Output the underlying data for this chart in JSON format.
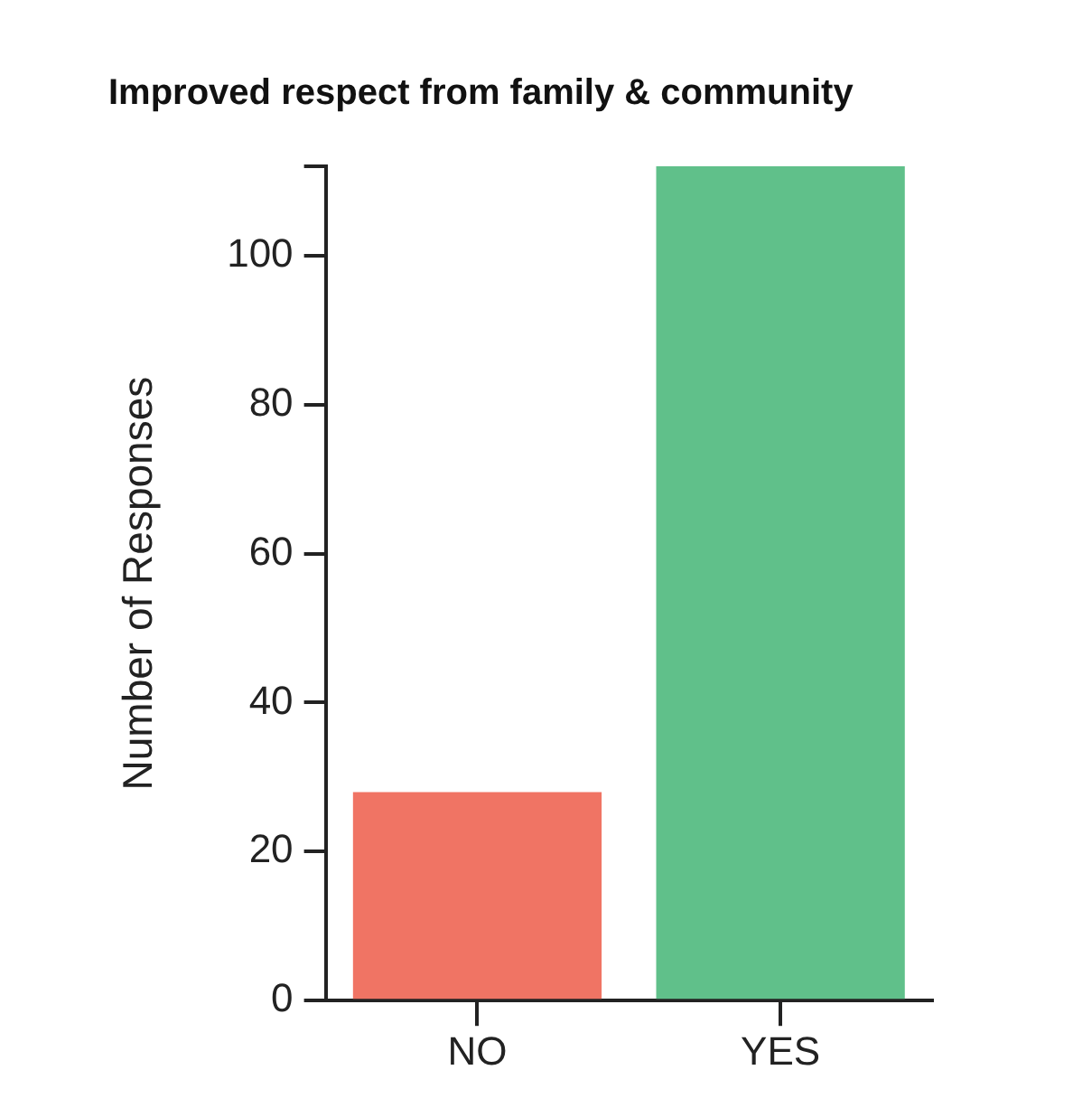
{
  "chart_data": {
    "type": "bar",
    "title": "Improved respect from family & community",
    "ylabel": "Number of Responses",
    "categories": [
      "NO",
      "YES"
    ],
    "values": [
      28,
      112
    ],
    "colors": [
      "#f07464",
      "#60c08a"
    ],
    "ylim": [
      0,
      112
    ],
    "yticks": [
      0,
      20,
      40,
      60,
      80,
      100,
      {
        "value": 112,
        "label": null
      }
    ],
    "grid": false,
    "legend": false
  }
}
